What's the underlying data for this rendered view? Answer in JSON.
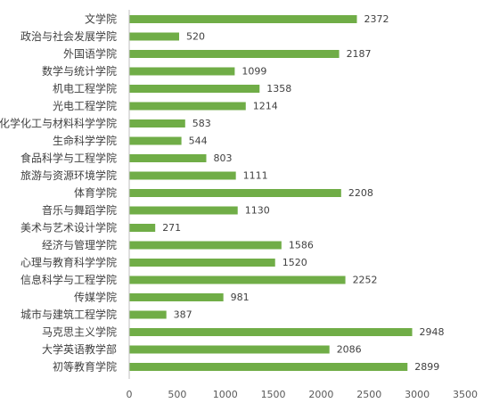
{
  "colors": {
    "bar": "#70ad47",
    "axis": "#bfbfbf",
    "text": "#404040",
    "background": "#ffffff"
  },
  "chart_data": {
    "type": "bar",
    "orientation": "horizontal",
    "title": "",
    "xlabel": "",
    "ylabel": "",
    "grid": false,
    "legend": "none",
    "xlim": [
      0,
      3500
    ],
    "x_ticks": [
      0,
      500,
      1000,
      1500,
      2000,
      2500,
      3000,
      3500
    ],
    "categories": [
      "文学院",
      "政治与社会发展学院",
      "外国语学院",
      "数学与统计学院",
      "机电工程学院",
      "光电工程学院",
      "化学化工与材料科学学院",
      "生命科学学院",
      "食品科学与工程学院",
      "旅游与资源环境学院",
      "体育学院",
      "音乐与舞蹈学院",
      "美术与艺术设计学院",
      "经济与管理学院",
      "心理与教育科学学院",
      "信息科学与工程学院",
      "传媒学院",
      "城市与建筑工程学院",
      "马克思主义学院",
      "大学英语教学部",
      "初等教育学院"
    ],
    "values": [
      2372,
      520,
      2187,
      1099,
      1358,
      1214,
      583,
      544,
      803,
      1111,
      2208,
      1130,
      271,
      1586,
      1520,
      2252,
      981,
      387,
      2948,
      2086,
      2899
    ],
    "data_labels": [
      "2372",
      "520",
      "2187",
      "1099",
      "1358",
      "1214",
      "583",
      "544",
      "803",
      "1111",
      "2208",
      "1130",
      "271",
      "1586",
      "1520",
      "2252",
      "981",
      "387",
      "2948",
      "2086",
      "2899"
    ]
  }
}
